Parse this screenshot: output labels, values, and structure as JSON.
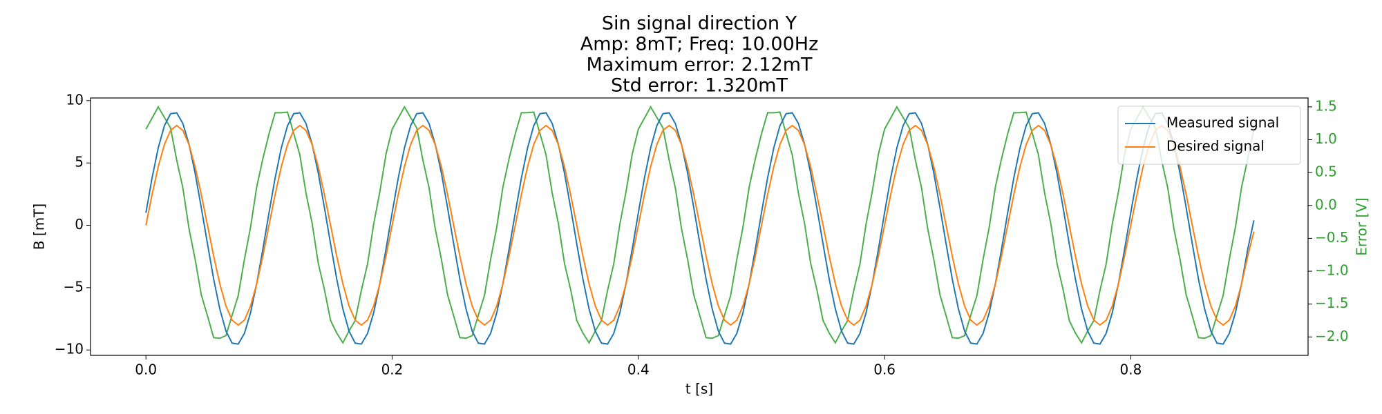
{
  "chart_data": {
    "type": "line",
    "title": [
      "Sin signal direction Y",
      "Amp: 8mT; Freq: 10.00Hz",
      "Maximum error: 2.12mT",
      "Std error: 1.320mT"
    ],
    "xlabel": "t [s]",
    "ylabel": "B [mT]",
    "y2label": "Error [V]",
    "y2color": "#2ca02c",
    "xlim": [
      -0.045,
      0.944
    ],
    "ylim": [
      -10.43,
      10.21
    ],
    "y2lim": [
      -2.28,
      1.635
    ],
    "xticks": [
      {
        "value": 0,
        "label": "0.0"
      },
      {
        "value": 0.2,
        "label": "0.2"
      },
      {
        "value": 0.4,
        "label": "0.4"
      },
      {
        "value": 0.6,
        "label": "0.6"
      },
      {
        "value": 0.8,
        "label": "0.8"
      }
    ],
    "yticks": [
      {
        "value": -10,
        "label": "−10"
      },
      {
        "value": -5,
        "label": "−5"
      },
      0,
      5,
      10
    ],
    "y2ticks": [
      {
        "value": -2,
        "label": "−2.0"
      },
      {
        "value": -1.5,
        "label": "−1.5"
      },
      {
        "value": -1,
        "label": "−1.0"
      },
      {
        "value": -0.5,
        "label": "−0.5"
      },
      {
        "value": 0,
        "label": "0.0"
      },
      0.5,
      {
        "value": 1,
        "label": "1.0"
      },
      1.5
    ],
    "legend": "upper right",
    "x": [
      0,
      0.005,
      0.01,
      0.015,
      0.02,
      0.025,
      0.03,
      0.035,
      0.04,
      0.045,
      0.05,
      0.055,
      0.06,
      0.065,
      0.07,
      0.075,
      0.08,
      0.085,
      0.09,
      0.095,
      0.1,
      0.105,
      0.11,
      0.115,
      0.12,
      0.125,
      0.13,
      0.135,
      0.14,
      0.145,
      0.15,
      0.155,
      0.16,
      0.165,
      0.17,
      0.175,
      0.18,
      0.185,
      0.19,
      0.195,
      0.2,
      0.205,
      0.21,
      0.215,
      0.22,
      0.225,
      0.23,
      0.235,
      0.24,
      0.245,
      0.25,
      0.255,
      0.26,
      0.265,
      0.27,
      0.275,
      0.28,
      0.285,
      0.29,
      0.295,
      0.3,
      0.305,
      0.31,
      0.315,
      0.32,
      0.325,
      0.33,
      0.335,
      0.34,
      0.345,
      0.35,
      0.355,
      0.36,
      0.365,
      0.37,
      0.375,
      0.38,
      0.385,
      0.39,
      0.395,
      0.4,
      0.405,
      0.41,
      0.415,
      0.42,
      0.425,
      0.43,
      0.435,
      0.44,
      0.445,
      0.45,
      0.455,
      0.46,
      0.465,
      0.47,
      0.475,
      0.48,
      0.485,
      0.49,
      0.495,
      0.5,
      0.505,
      0.51,
      0.515,
      0.52,
      0.525,
      0.53,
      0.535,
      0.54,
      0.545,
      0.55,
      0.555,
      0.56,
      0.565,
      0.57,
      0.575,
      0.58,
      0.585,
      0.59,
      0.595,
      0.6,
      0.605,
      0.61,
      0.615,
      0.62,
      0.625,
      0.63,
      0.635,
      0.64,
      0.645,
      0.65,
      0.655,
      0.66,
      0.665,
      0.67,
      0.675,
      0.68,
      0.685,
      0.69,
      0.695,
      0.7,
      0.705,
      0.71,
      0.715,
      0.72,
      0.725,
      0.73,
      0.735,
      0.74,
      0.745,
      0.75,
      0.755,
      0.76,
      0.765,
      0.77,
      0.775,
      0.78,
      0.785,
      0.79,
      0.795,
      0.8,
      0.805,
      0.81,
      0.815,
      0.82,
      0.825,
      0.83,
      0.835,
      0.84,
      0.845,
      0.85,
      0.855,
      0.86,
      0.865,
      0.87,
      0.875,
      0.88,
      0.885,
      0.89,
      0.895,
      0.9
    ],
    "series": [
      {
        "color": "#2ca02c",
        "axis": "y2",
        "values": [
          1.16,
          1.33,
          1.5,
          1.34,
          1.18,
          0.69,
          0.27,
          -0.35,
          -0.82,
          -1.36,
          -1.68,
          -2.01,
          -2.02,
          -1.98,
          -1.67,
          -1.37,
          -0.82,
          -0.33,
          0.28,
          0.71,
          1.09,
          1.41,
          1.41,
          1.42,
          1.1,
          0.77,
          0.19,
          -0.27,
          -0.88,
          -1.28,
          -1.75,
          -1.94,
          -2.09,
          -1.91,
          -1.75,
          -1.29,
          -0.89,
          -0.28,
          0.21,
          0.78,
          1.16,
          1.33,
          1.5,
          1.34,
          1.18,
          0.69,
          0.27,
          -0.35,
          -0.82,
          -1.36,
          -1.68,
          -2.01,
          -2.02,
          -1.98,
          -1.67,
          -1.37,
          -0.82,
          -0.33,
          0.28,
          0.71,
          1.09,
          1.41,
          1.41,
          1.42,
          1.1,
          0.77,
          0.19,
          -0.27,
          -0.88,
          -1.28,
          -1.75,
          -1.94,
          -2.09,
          -1.91,
          -1.75,
          -1.29,
          -0.89,
          -0.28,
          0.21,
          0.78,
          1.16,
          1.33,
          1.5,
          1.34,
          1.18,
          0.69,
          0.27,
          -0.35,
          -0.82,
          -1.36,
          -1.68,
          -2.01,
          -2.02,
          -1.98,
          -1.67,
          -1.37,
          -0.82,
          -0.33,
          0.28,
          0.71,
          1.09,
          1.41,
          1.41,
          1.42,
          1.1,
          0.77,
          0.19,
          -0.27,
          -0.88,
          -1.28,
          -1.75,
          -1.94,
          -2.09,
          -1.91,
          -1.75,
          -1.29,
          -0.89,
          -0.28,
          0.21,
          0.78,
          1.16,
          1.33,
          1.5,
          1.34,
          1.18,
          0.69,
          0.27,
          -0.35,
          -0.82,
          -1.36,
          -1.68,
          -2.01,
          -2.02,
          -1.98,
          -1.67,
          -1.37,
          -0.82,
          -0.33,
          0.28,
          0.71,
          1.09,
          1.41,
          1.41,
          1.42,
          1.1,
          0.77,
          0.19,
          -0.27,
          -0.88,
          -1.28,
          -1.75,
          -1.94,
          -2.09,
          -1.91,
          -1.75,
          -1.29,
          -0.89,
          -0.28,
          0.21,
          0.78,
          1.16,
          1.33,
          1.5,
          1.34,
          1.18,
          0.69,
          0.27,
          -0.35,
          -0.82,
          -1.36,
          -1.68,
          -2.01,
          -2.02,
          -1.98,
          -1.67,
          -1.37,
          -0.82,
          -0.33,
          0.28,
          0.71,
          1.16
        ]
      },
      {
        "name": "Measured signal",
        "color": "#1f77b4",
        "values": [
          1.0,
          3.81,
          6.21,
          7.98,
          8.95,
          9.02,
          8.17,
          6.51,
          4.18,
          1.42,
          -1.5,
          -4.31,
          -6.71,
          -8.48,
          -9.45,
          -9.52,
          -8.67,
          -7.01,
          -4.68,
          -1.92,
          1.0,
          3.81,
          6.21,
          7.98,
          8.95,
          9.02,
          8.17,
          6.51,
          4.18,
          1.42,
          -1.5,
          -4.31,
          -6.71,
          -8.48,
          -9.45,
          -9.52,
          -8.67,
          -7.01,
          -4.68,
          -1.92,
          1.0,
          3.81,
          6.21,
          7.98,
          8.95,
          9.02,
          8.17,
          6.51,
          4.18,
          1.42,
          -1.5,
          -4.31,
          -6.71,
          -8.48,
          -9.45,
          -9.52,
          -8.67,
          -7.01,
          -4.68,
          -1.92,
          1.0,
          3.81,
          6.21,
          7.98,
          8.95,
          9.02,
          8.17,
          6.51,
          4.18,
          1.42,
          -1.5,
          -4.31,
          -6.71,
          -8.48,
          -9.45,
          -9.52,
          -8.67,
          -7.01,
          -4.68,
          -1.92,
          1.0,
          3.81,
          6.21,
          7.98,
          8.95,
          9.02,
          8.17,
          6.51,
          4.18,
          1.42,
          -1.5,
          -4.31,
          -6.71,
          -8.48,
          -9.45,
          -9.52,
          -8.67,
          -7.01,
          -4.68,
          -1.92,
          1.0,
          3.81,
          6.21,
          7.98,
          8.95,
          9.02,
          8.17,
          6.51,
          4.18,
          1.42,
          -1.5,
          -4.31,
          -6.71,
          -8.48,
          -9.45,
          -9.52,
          -8.67,
          -7.01,
          -4.68,
          -1.92,
          1.0,
          3.81,
          6.21,
          7.98,
          8.95,
          9.02,
          8.17,
          6.51,
          4.18,
          1.42,
          -1.5,
          -4.31,
          -6.71,
          -8.48,
          -9.45,
          -9.52,
          -8.67,
          -7.01,
          -4.68,
          -1.92,
          1.0,
          3.81,
          6.21,
          7.98,
          8.95,
          9.02,
          8.17,
          6.51,
          4.18,
          1.42,
          -1.5,
          -4.31,
          -6.71,
          -8.48,
          -9.45,
          -9.52,
          -8.67,
          -7.01,
          -4.68,
          -1.92,
          1.0,
          3.81,
          6.21,
          7.98,
          8.95,
          9.02,
          8.17,
          6.51,
          4.18,
          1.42,
          -1.5,
          -4.31,
          -6.71,
          -8.48,
          -9.45,
          -9.52,
          -8.67,
          -7.01,
          -4.68,
          -1.92,
          0.4
        ]
      },
      {
        "name": "Desired signal",
        "color": "#ff7f0e",
        "values": [
          0,
          2.47,
          4.7,
          6.47,
          7.61,
          8,
          7.61,
          6.47,
          4.7,
          2.47,
          0,
          -2.47,
          -4.7,
          -6.47,
          -7.61,
          -8,
          -7.61,
          -6.47,
          -4.7,
          -2.47,
          0,
          2.47,
          4.7,
          6.47,
          7.61,
          8,
          7.61,
          6.47,
          4.7,
          2.47,
          0,
          -2.47,
          -4.7,
          -6.47,
          -7.61,
          -8,
          -7.61,
          -6.47,
          -4.7,
          -2.47,
          0,
          2.47,
          4.7,
          6.47,
          7.61,
          8,
          7.61,
          6.47,
          4.7,
          2.47,
          0,
          -2.47,
          -4.7,
          -6.47,
          -7.61,
          -8,
          -7.61,
          -6.47,
          -4.7,
          -2.47,
          0,
          2.47,
          4.7,
          6.47,
          7.61,
          8,
          7.61,
          6.47,
          4.7,
          2.47,
          0,
          -2.47,
          -4.7,
          -6.47,
          -7.61,
          -8,
          -7.61,
          -6.47,
          -4.7,
          -2.47,
          0,
          2.47,
          4.7,
          6.47,
          7.61,
          8,
          7.61,
          6.47,
          4.7,
          2.47,
          0,
          -2.47,
          -4.7,
          -6.47,
          -7.61,
          -8,
          -7.61,
          -6.47,
          -4.7,
          -2.47,
          0,
          2.47,
          4.7,
          6.47,
          7.61,
          8,
          7.61,
          6.47,
          4.7,
          2.47,
          0,
          -2.47,
          -4.7,
          -6.47,
          -7.61,
          -8,
          -7.61,
          -6.47,
          -4.7,
          -2.47,
          0,
          2.47,
          4.7,
          6.47,
          7.61,
          8,
          7.61,
          6.47,
          4.7,
          2.47,
          0,
          -2.47,
          -4.7,
          -6.47,
          -7.61,
          -8,
          -7.61,
          -6.47,
          -4.7,
          -2.47,
          0,
          2.47,
          4.7,
          6.47,
          7.61,
          8,
          7.61,
          6.47,
          4.7,
          2.47,
          0,
          -2.47,
          -4.7,
          -6.47,
          -7.61,
          -8,
          -7.61,
          -6.47,
          -4.7,
          -2.47,
          0,
          2.47,
          4.7,
          6.47,
          7.61,
          8,
          7.61,
          6.47,
          4.7,
          2.47,
          0,
          -2.47,
          -4.7,
          -6.47,
          -7.61,
          -8,
          -7.61,
          -6.47,
          -4.7,
          -2.47,
          -0.5
        ]
      }
    ]
  }
}
